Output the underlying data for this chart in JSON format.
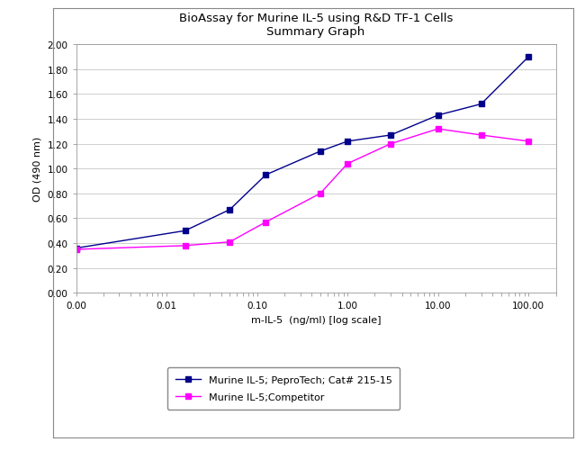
{
  "title_line1": "BioAssay for Murine IL-5 using R&D TF-1 Cells",
  "title_line2": "Summary Graph",
  "xlabel": "m-IL-5  (ng/ml) [log scale]",
  "ylabel": "OD (490 nm)",
  "ylim": [
    0.0,
    2.0
  ],
  "yticks": [
    0.0,
    0.2,
    0.4,
    0.6,
    0.8,
    1.0,
    1.2,
    1.4,
    1.6,
    1.8,
    2.0
  ],
  "x_pepro": [
    0.001,
    0.016,
    0.05,
    0.125,
    0.5,
    1.0,
    3.0,
    10.0,
    30.0,
    100.0
  ],
  "y_pepro": [
    0.36,
    0.5,
    0.67,
    0.95,
    1.14,
    1.22,
    1.27,
    1.43,
    1.52,
    1.9
  ],
  "x_comp": [
    0.001,
    0.016,
    0.05,
    0.125,
    0.5,
    1.0,
    3.0,
    10.0,
    30.0,
    100.0
  ],
  "y_comp": [
    0.35,
    0.38,
    0.41,
    0.57,
    0.8,
    1.04,
    1.2,
    1.32,
    1.27,
    1.22
  ],
  "color_pepro": "#00008B",
  "color_comp": "#FF00FF",
  "legend_pepro": "Murine IL-5; PeproTech; Cat# 215-15",
  "legend_comp": "Murine IL-5;Competitor",
  "bg_outer": "#FFFFFF",
  "bg_inner": "#FFFFFF",
  "marker": "s",
  "markersize": 4,
  "linewidth": 1.0,
  "title_fontsize": 9.5,
  "axis_label_fontsize": 8,
  "tick_fontsize": 7.5,
  "legend_fontsize": 8,
  "xtick_positions": [
    0.001,
    0.01,
    0.1,
    1.0,
    10.0,
    100.0
  ],
  "xtick_labels": [
    "0.00",
    "0.01",
    "0.10",
    "1.00",
    "10.00",
    "100.00"
  ]
}
